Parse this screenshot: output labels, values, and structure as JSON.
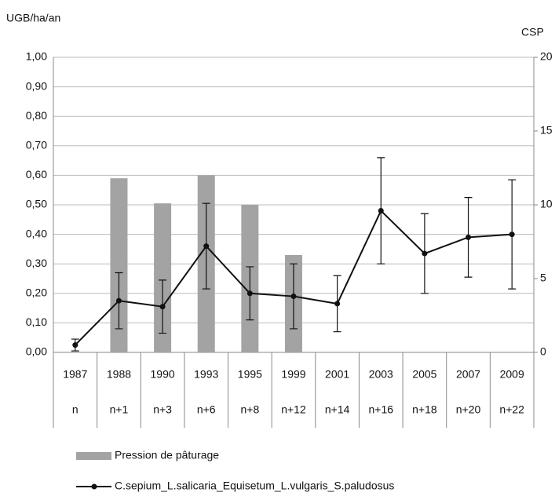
{
  "chart_data": {
    "type": "bar_line",
    "y_label": "UGB/ha/an",
    "y2_label": "CSP",
    "categories": [
      "1987",
      "1988",
      "1990",
      "1993",
      "1995",
      "1999",
      "2001",
      "2003",
      "2005",
      "2007",
      "2009"
    ],
    "categories2": [
      "n",
      "n+1",
      "n+3",
      "n+6",
      "n+8",
      "n+12",
      "n+14",
      "n+16",
      "n+18",
      "n+20",
      "n+22"
    ],
    "ylim": [
      0,
      1
    ],
    "yticks": [
      {
        "value": 0,
        "label": "0,00"
      },
      {
        "value": 0.1,
        "label": "0,10"
      },
      {
        "value": 0.2,
        "label": "0,20"
      },
      {
        "value": 0.3,
        "label": "0,30"
      },
      {
        "value": 0.4,
        "label": "0,40"
      },
      {
        "value": 0.5,
        "label": "0,50"
      },
      {
        "value": 0.6,
        "label": "0,60"
      },
      {
        "value": 0.7,
        "label": "0,70"
      },
      {
        "value": 0.8,
        "label": "0,80"
      },
      {
        "value": 0.9,
        "label": "0,90"
      },
      {
        "value": 1,
        "label": "1,00"
      }
    ],
    "y2lim": [
      0,
      20
    ],
    "y2ticks": [
      0,
      5,
      10,
      15,
      20
    ],
    "grid": true,
    "series": [
      {
        "name": "Pression de pâturage",
        "type": "bar",
        "color": "#a3a3a3",
        "values": [
          null,
          0.59,
          0.505,
          0.6,
          0.5,
          0.33,
          null,
          null,
          null,
          null,
          null
        ]
      },
      {
        "name": "C.sepium_L.salicaria_Equisetum_L.vulgaris_S.paludosus",
        "type": "line",
        "axis": "y2",
        "color": "#111111",
        "values": [
          0.5,
          3.5,
          3.1,
          7.2,
          4.0,
          3.8,
          3.3,
          9.6,
          6.7,
          7.8,
          8.0
        ],
        "errors": [
          0.4,
          1.9,
          1.8,
          2.9,
          1.8,
          2.2,
          1.9,
          3.6,
          2.7,
          2.7,
          3.7
        ]
      }
    ]
  }
}
